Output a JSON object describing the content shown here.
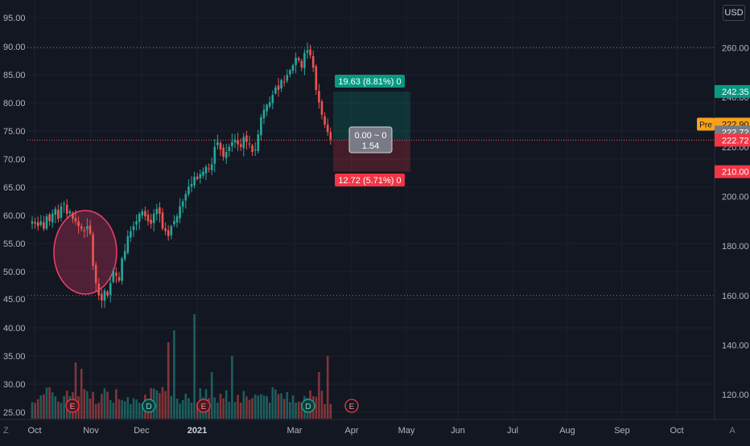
{
  "currency_button": "USD",
  "corner_left": "Z",
  "corner_right": "A",
  "chart_data": {
    "type": "candlestick",
    "x_tick_labels": [
      "Oct",
      "Nov",
      "Dec",
      "2021",
      "Mar",
      "Apr",
      "May",
      "Jun",
      "Jul",
      "Aug",
      "Sep",
      "Oct"
    ],
    "left_axis_ticks": [
      "95.00",
      "90.00",
      "85.00",
      "80.00",
      "75.00",
      "70.00",
      "65.00",
      "60.00",
      "55.00",
      "50.00",
      "45.00",
      "40.00",
      "35.00",
      "30.00",
      "25.00"
    ],
    "right_axis_ticks": [
      "260.00",
      "240.00",
      "220.00",
      "200.00",
      "180.00",
      "160.00",
      "140.00",
      "120.00"
    ],
    "price_labels": {
      "target": "242.35",
      "pre_tag": "Pre",
      "pre_value": "222.90",
      "current": "222.72",
      "last": "222.72",
      "stop": "210.00"
    },
    "position_tool": {
      "profit_label": "19.63 (8.81%) 0",
      "loss_label": "12.72 (5.71%) 0",
      "entry_label_top": "0.00 ~ 0",
      "entry_label_bottom": "1.54",
      "target_price": 242.35,
      "entry_price": 222.72,
      "stop_price": 210.0
    },
    "event_markers": [
      {
        "letter": "E",
        "month": "Oct",
        "type": "earnings"
      },
      {
        "letter": "D",
        "month": "Nov",
        "type": "dividend"
      },
      {
        "letter": "E",
        "month": "Jan",
        "type": "earnings"
      },
      {
        "letter": "D",
        "month": "Feb",
        "type": "dividend"
      },
      {
        "letter": "E",
        "month": "Apr",
        "type": "earnings-upcoming"
      }
    ],
    "reference_lines": [
      260.0,
      160.0
    ],
    "close_series": [
      190,
      189,
      188,
      190,
      187,
      192,
      190,
      193,
      195,
      191,
      196,
      197,
      193,
      194,
      191,
      190,
      188,
      187,
      186,
      188,
      185,
      172,
      165,
      160,
      158,
      162,
      160,
      165,
      170,
      168,
      166,
      175,
      178,
      184,
      186,
      188,
      190,
      193,
      194,
      192,
      190,
      189,
      193,
      195,
      193,
      187,
      186,
      184,
      188,
      190,
      192,
      196,
      198,
      201,
      204,
      205,
      208,
      207,
      209,
      210,
      212,
      211,
      213,
      220,
      222,
      219,
      216,
      218,
      220,
      222,
      223,
      221,
      220,
      224,
      222,
      221,
      218,
      219,
      225,
      232,
      235,
      237,
      238,
      241,
      244,
      243,
      247,
      246,
      249,
      251,
      253,
      256,
      255,
      252,
      258,
      259,
      257,
      252,
      243,
      238,
      233,
      229,
      226,
      223
    ],
    "colors": {
      "up": "#26a69a",
      "down": "#ef5350",
      "target": "#089981",
      "stop": "#f23645",
      "pre": "#f7a21b",
      "current": "#787b86",
      "circle": "#f23e6c"
    }
  }
}
